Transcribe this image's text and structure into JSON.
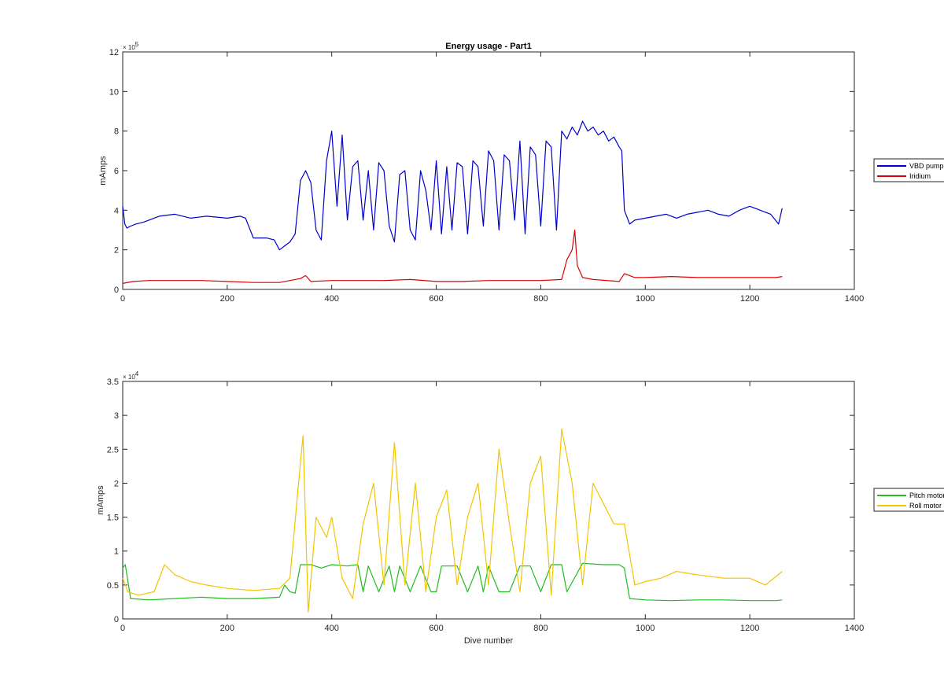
{
  "chart_data": [
    {
      "type": "line",
      "title": "Energy usage - Part1",
      "xlabel": "",
      "ylabel": "mAmps",
      "xlim": [
        0,
        1400
      ],
      "ylim": [
        0,
        1200000
      ],
      "x_ticks": [
        0,
        200,
        400,
        600,
        800,
        1000,
        1200,
        1400
      ],
      "y_tick_labels": [
        "0",
        "2",
        "4",
        "6",
        "8",
        "10",
        "12"
      ],
      "y_exponent": {
        "base": "× 10",
        "power": "5"
      },
      "legend_position": "outside-right",
      "series": [
        {
          "name": "VBD pump",
          "color": "#0000cc",
          "x": [
            0,
            4,
            8,
            15,
            25,
            40,
            50,
            70,
            100,
            130,
            160,
            200,
            225,
            235,
            250,
            275,
            290,
            300,
            310,
            320,
            330,
            340,
            350,
            360,
            370,
            380,
            390,
            400,
            410,
            420,
            430,
            440,
            450,
            460,
            470,
            480,
            490,
            500,
            510,
            520,
            530,
            540,
            550,
            560,
            570,
            580,
            590,
            600,
            610,
            620,
            630,
            640,
            650,
            660,
            670,
            680,
            690,
            700,
            710,
            720,
            730,
            740,
            750,
            760,
            770,
            780,
            790,
            800,
            810,
            820,
            830,
            840,
            850,
            860,
            870,
            880,
            890,
            900,
            910,
            920,
            930,
            940,
            950,
            955,
            960,
            970,
            980,
            1000,
            1020,
            1040,
            1060,
            1080,
            1100,
            1120,
            1140,
            1160,
            1180,
            1200,
            1220,
            1240,
            1255,
            1262
          ],
          "values": [
            420000,
            330000,
            310000,
            320000,
            330000,
            340000,
            350000,
            370000,
            380000,
            360000,
            370000,
            360000,
            370000,
            360000,
            260000,
            260000,
            250000,
            200000,
            220000,
            240000,
            280000,
            550000,
            600000,
            540000,
            300000,
            250000,
            650000,
            800000,
            420000,
            780000,
            350000,
            620000,
            650000,
            350000,
            600000,
            300000,
            640000,
            600000,
            320000,
            240000,
            580000,
            600000,
            300000,
            250000,
            600000,
            500000,
            300000,
            650000,
            280000,
            620000,
            300000,
            640000,
            620000,
            280000,
            650000,
            620000,
            320000,
            700000,
            650000,
            300000,
            680000,
            650000,
            350000,
            750000,
            280000,
            720000,
            680000,
            320000,
            750000,
            720000,
            300000,
            800000,
            760000,
            820000,
            780000,
            850000,
            800000,
            820000,
            780000,
            800000,
            750000,
            770000,
            720000,
            700000,
            400000,
            330000,
            350000,
            360000,
            370000,
            380000,
            360000,
            380000,
            390000,
            400000,
            380000,
            370000,
            400000,
            420000,
            400000,
            380000,
            330000,
            410000
          ]
        },
        {
          "name": "Iridium",
          "color": "#dd0000",
          "x": [
            0,
            20,
            50,
            100,
            150,
            200,
            250,
            300,
            320,
            340,
            350,
            360,
            400,
            450,
            500,
            550,
            600,
            650,
            700,
            750,
            800,
            840,
            850,
            860,
            865,
            870,
            880,
            900,
            950,
            960,
            980,
            1000,
            1050,
            1100,
            1150,
            1200,
            1250,
            1262
          ],
          "values": [
            30000,
            40000,
            45000,
            45000,
            45000,
            40000,
            35000,
            35000,
            45000,
            55000,
            70000,
            40000,
            45000,
            45000,
            45000,
            50000,
            40000,
            40000,
            45000,
            45000,
            45000,
            50000,
            150000,
            200000,
            300000,
            120000,
            60000,
            50000,
            40000,
            80000,
            60000,
            60000,
            65000,
            60000,
            60000,
            60000,
            60000,
            65000
          ]
        }
      ]
    },
    {
      "type": "line",
      "title": "",
      "xlabel": "Dive number",
      "ylabel": "mAmps",
      "xlim": [
        0,
        1400
      ],
      "ylim": [
        0,
        35000
      ],
      "x_ticks": [
        0,
        200,
        400,
        600,
        800,
        1000,
        1200,
        1400
      ],
      "y_tick_labels": [
        "0",
        "0.5",
        "1",
        "1.5",
        "2",
        "2.5",
        "3",
        "3.5"
      ],
      "y_exponent": {
        "base": "× 10",
        "power": "4"
      },
      "legend_position": "outside-right",
      "series": [
        {
          "name": "Pitch motor",
          "color": "#22bb22",
          "x": [
            0,
            5,
            15,
            50,
            100,
            150,
            200,
            250,
            300,
            310,
            320,
            330,
            340,
            360,
            380,
            400,
            430,
            450,
            460,
            470,
            490,
            510,
            520,
            530,
            550,
            570,
            590,
            600,
            610,
            640,
            660,
            680,
            690,
            700,
            720,
            740,
            760,
            780,
            800,
            820,
            840,
            850,
            880,
            920,
            950,
            960,
            970,
            1000,
            1050,
            1100,
            1150,
            1200,
            1250,
            1262
          ],
          "values": [
            7500,
            8000,
            3000,
            2800,
            3000,
            3200,
            3000,
            3000,
            3200,
            5000,
            4000,
            3800,
            8000,
            8000,
            7500,
            8000,
            7800,
            8000,
            4000,
            7800,
            4000,
            7800,
            4000,
            7800,
            4000,
            7800,
            4000,
            4000,
            7800,
            7800,
            4000,
            7800,
            4000,
            7800,
            4000,
            4000,
            7800,
            7800,
            4000,
            8000,
            8000,
            4000,
            8200,
            8000,
            8000,
            7500,
            3000,
            2800,
            2700,
            2800,
            2800,
            2700,
            2700,
            2800
          ]
        },
        {
          "name": "Roll motor",
          "color": "#f2c500",
          "x": [
            0,
            10,
            30,
            60,
            80,
            100,
            130,
            160,
            200,
            250,
            300,
            320,
            340,
            345,
            355,
            370,
            390,
            400,
            420,
            440,
            460,
            480,
            500,
            520,
            540,
            560,
            580,
            600,
            620,
            640,
            660,
            680,
            700,
            720,
            740,
            760,
            780,
            800,
            820,
            840,
            860,
            880,
            900,
            920,
            940,
            960,
            980,
            1000,
            1030,
            1060,
            1100,
            1150,
            1200,
            1230,
            1262
          ],
          "values": [
            6000,
            4000,
            3500,
            4000,
            8000,
            6500,
            5500,
            5000,
            4500,
            4200,
            4500,
            6000,
            23000,
            27000,
            1000,
            15000,
            12000,
            15000,
            6000,
            3000,
            14000,
            20000,
            5000,
            26000,
            5000,
            20000,
            4000,
            15000,
            19000,
            5000,
            15000,
            20000,
            5000,
            25000,
            14000,
            4000,
            20000,
            24000,
            3500,
            28000,
            20000,
            5000,
            20000,
            17000,
            14000,
            14000,
            5000,
            5500,
            6000,
            7000,
            6500,
            6000,
            6000,
            5000,
            7000
          ]
        }
      ]
    }
  ]
}
